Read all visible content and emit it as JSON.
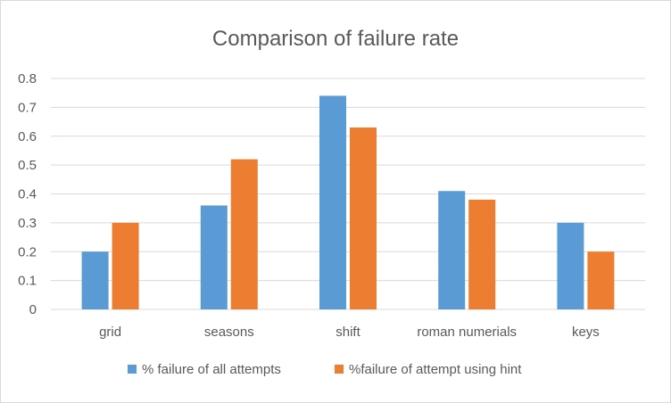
{
  "chart_data": {
    "type": "bar",
    "title": "Comparison of failure rate",
    "xlabel": "",
    "ylabel": "",
    "categories": [
      "grid",
      "seasons",
      "shift",
      "roman numerials",
      "keys"
    ],
    "series": [
      {
        "name": "% failure of all attempts",
        "color": "#5b9bd5",
        "values": [
          0.2,
          0.36,
          0.74,
          0.41,
          0.3
        ]
      },
      {
        "name": "%failure of attempt using hint",
        "color": "#ed7d31",
        "values": [
          0.3,
          0.52,
          0.63,
          0.38,
          0.2
        ]
      }
    ],
    "ylim": [
      0,
      0.8
    ],
    "yticks": [
      "0",
      "0.1",
      "0.2",
      "0.3",
      "0.4",
      "0.5",
      "0.6",
      "0.7",
      "0.8"
    ],
    "grid": true,
    "legend_position": "bottom"
  }
}
